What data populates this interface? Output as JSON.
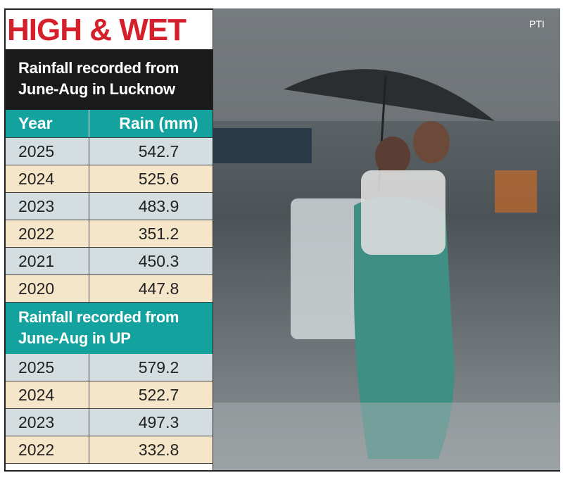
{
  "header": {
    "title": "HIGH & WET",
    "credit": "PTI"
  },
  "table": {
    "columns": [
      "Year",
      "Rain (mm)"
    ],
    "sections": [
      {
        "title": "Rainfall recorded from June-Aug in Lucknow",
        "rows": [
          [
            "2025",
            "542.7"
          ],
          [
            "2024",
            "525.6"
          ],
          [
            "2023",
            "483.9"
          ],
          [
            "2022",
            "351.2"
          ],
          [
            "2021",
            "450.3"
          ],
          [
            "2020",
            "447.8"
          ]
        ]
      },
      {
        "title": "Rainfall recorded from June-Aug in UP",
        "rows": [
          [
            "2025",
            "579.2"
          ],
          [
            "2024",
            "522.7"
          ],
          [
            "2023",
            "497.3"
          ],
          [
            "2022",
            "332.8"
          ]
        ]
      }
    ]
  }
}
